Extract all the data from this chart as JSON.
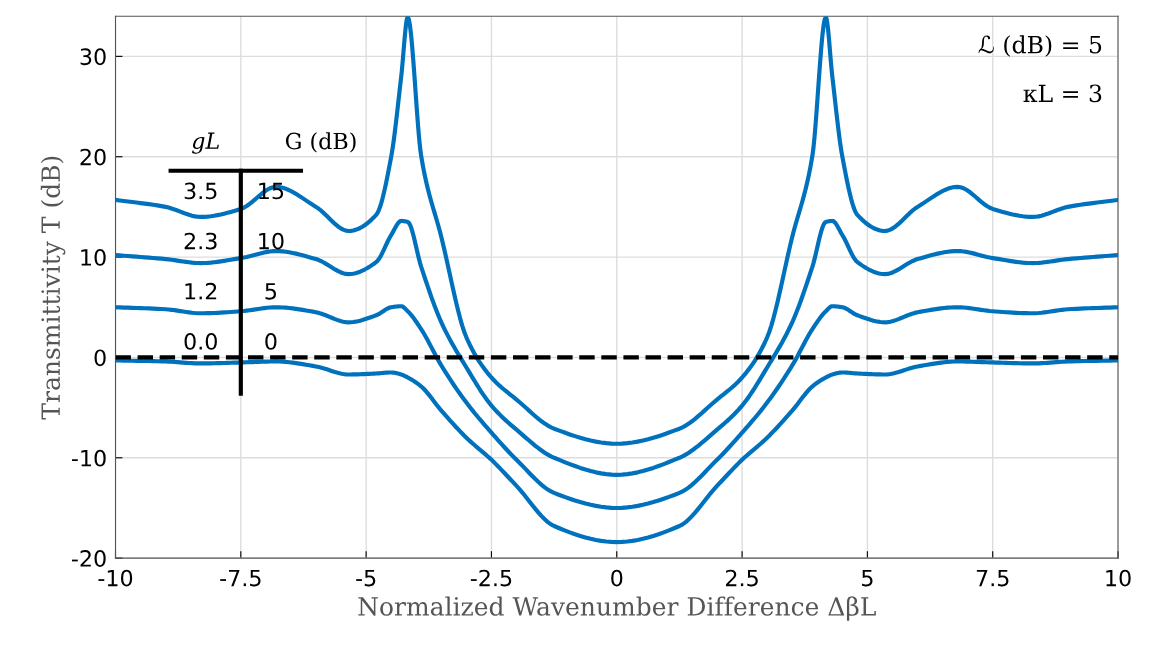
{
  "chart_data": {
    "type": "line",
    "xlabel": "Normalized Wavenumber Difference ΔβL",
    "ylabel": "Transmittivity T (dB)",
    "x": [
      -10,
      -9,
      -8.3,
      -7.5,
      -6.8,
      -6,
      -5.35,
      -4.8,
      -4.5,
      -4.3,
      -4.17,
      -3.9,
      -3.5,
      -3,
      -2.5,
      -2,
      -1.25,
      0,
      1.25,
      2,
      2.5,
      3,
      3.5,
      3.9,
      4.17,
      4.3,
      4.5,
      4.8,
      5.35,
      6,
      6.8,
      7.5,
      8.3,
      9,
      10
    ],
    "series": [
      {
        "color": "#0072bd",
        "values": [
          15.7,
          15.0,
          14.0,
          14.8,
          17.0,
          15.0,
          12.6,
          14.2,
          20,
          28,
          33.9,
          20,
          12,
          2,
          -2.0,
          -4.2,
          -7.1,
          -8.6,
          -7.1,
          -4.2,
          -2.0,
          2,
          12,
          20,
          33.9,
          28,
          20,
          14.2,
          12.6,
          15.0,
          17.0,
          14.8,
          14.0,
          15.0,
          15.7
        ]
      },
      {
        "color": "#0072bd",
        "values": [
          10.2,
          9.8,
          9.4,
          9.9,
          10.6,
          9.8,
          8.3,
          9.5,
          12.2,
          13.6,
          13.5,
          9,
          3.5,
          -1,
          -4.8,
          -7.2,
          -10.0,
          -11.7,
          -10.0,
          -7.2,
          -4.8,
          -1,
          3.5,
          9,
          13.5,
          13.6,
          12.2,
          9.5,
          8.3,
          9.8,
          10.6,
          9.9,
          9.4,
          9.8,
          10.2
        ]
      },
      {
        "color": "#0072bd",
        "values": [
          5.0,
          4.8,
          4.4,
          4.6,
          5.0,
          4.5,
          3.5,
          4.2,
          5.0,
          5.1,
          4.6,
          2.8,
          -0.8,
          -4.5,
          -7.5,
          -10.2,
          -13.5,
          -15.0,
          -13.5,
          -10.2,
          -7.5,
          -4.5,
          -0.8,
          2.8,
          4.6,
          5.1,
          5.0,
          4.2,
          3.5,
          4.5,
          5.0,
          4.6,
          4.4,
          4.8,
          5.0
        ]
      },
      {
        "color": "#0072bd",
        "values": [
          -0.3,
          -0.4,
          -0.6,
          -0.5,
          -0.4,
          -0.9,
          -1.7,
          -1.6,
          -1.5,
          -1.7,
          -2.0,
          -2.9,
          -5.3,
          -8.0,
          -10.2,
          -12.8,
          -16.8,
          -18.4,
          -16.8,
          -12.8,
          -10.2,
          -8.0,
          -5.3,
          -2.9,
          -2.0,
          -1.7,
          -1.5,
          -1.6,
          -1.7,
          -0.9,
          -0.4,
          -0.5,
          -0.6,
          -0.4,
          -0.3
        ]
      }
    ],
    "xlim": [
      -10,
      10
    ],
    "xticks": [
      -10,
      -7.5,
      -5,
      -2.5,
      0,
      2.5,
      5,
      7.5,
      10
    ],
    "ylim": [
      -20,
      34
    ],
    "yticks": [
      -20,
      -10,
      0,
      10,
      20,
      30
    ],
    "grid": true,
    "legend": false,
    "line_style": "solid",
    "marker": "none",
    "ref_lines": [
      {
        "axis": "y",
        "value": 0,
        "color": "#000000",
        "line_style": "dashed"
      }
    ],
    "annotations": [
      "ℒ (dB) = 5",
      "κL = 3",
      "gL",
      "G (dB)",
      "3.5",
      "15",
      "2.3",
      "10",
      "1.2",
      "5",
      "0.0",
      "0"
    ]
  }
}
